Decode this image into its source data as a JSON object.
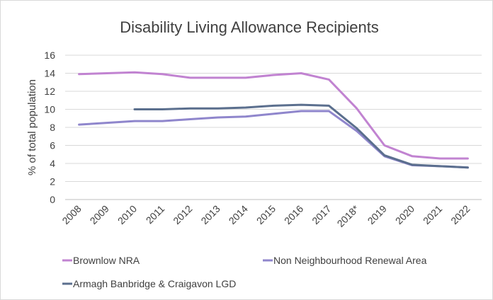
{
  "chart_data": {
    "type": "line",
    "title": "Disability Living Allowance Recipients",
    "xlabel": "",
    "ylabel": "% of total population",
    "ylim": [
      0,
      16
    ],
    "yticks": [
      0,
      2,
      4,
      6,
      8,
      10,
      12,
      14,
      16
    ],
    "grid": true,
    "legend_position": "bottom",
    "categories": [
      "2008",
      "2009",
      "2010",
      "2011",
      "2012",
      "2013",
      "2014",
      "2015",
      "2016",
      "2017",
      "2018*",
      "2019",
      "2020",
      "2021",
      "2022"
    ],
    "series": [
      {
        "name": "Brownlow NRA",
        "color": "#c183d1",
        "values": [
          13.9,
          14.0,
          14.1,
          13.9,
          13.5,
          13.5,
          13.5,
          13.8,
          14.0,
          13.3,
          10.1,
          6.0,
          4.8,
          4.55,
          4.55
        ]
      },
      {
        "name": "Non Neighbourhood Renewal Area",
        "color": "#8f86cc",
        "values": [
          8.3,
          8.5,
          8.7,
          8.7,
          8.9,
          9.1,
          9.2,
          9.5,
          9.8,
          9.8,
          7.6,
          4.8,
          3.8,
          3.7,
          3.55
        ]
      },
      {
        "name": "Armagh Banbridge & Craigavon LGD",
        "color": "#5b6f8e",
        "values": [
          null,
          null,
          10.0,
          10.0,
          10.1,
          10.1,
          10.2,
          10.4,
          10.5,
          10.4,
          7.9,
          4.9,
          3.85,
          3.7,
          3.55
        ]
      }
    ]
  }
}
